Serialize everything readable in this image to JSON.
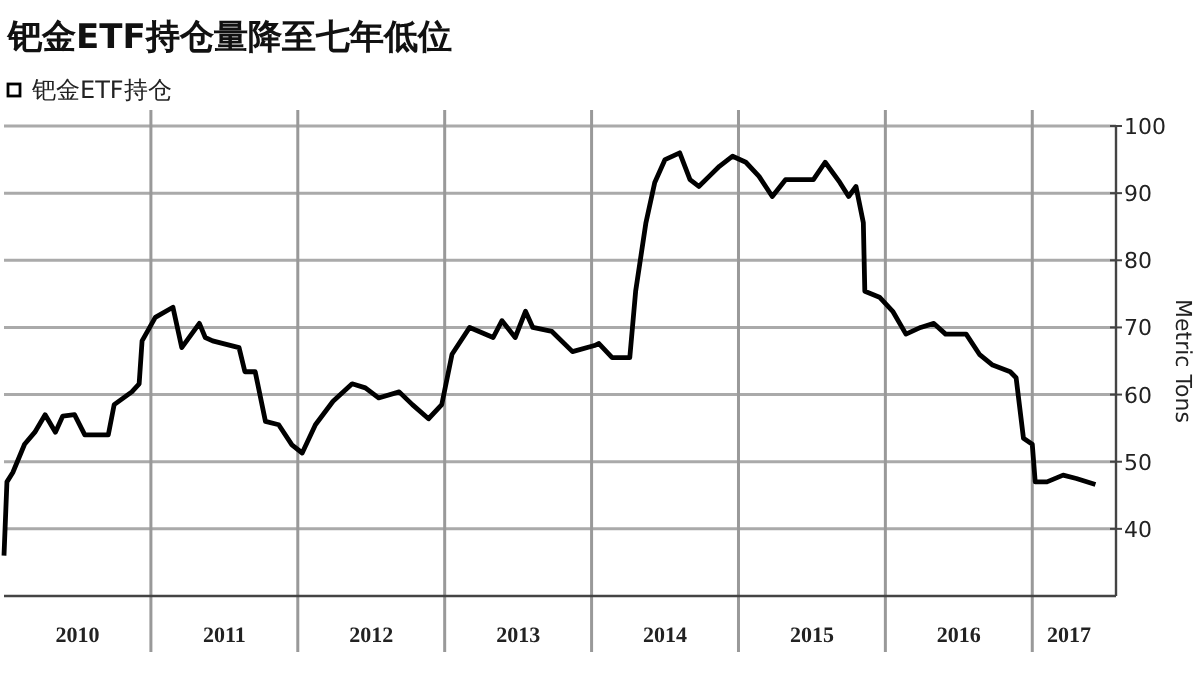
{
  "chart_data": {
    "type": "line",
    "title": "钯金ETF持仓量降至七年低位",
    "ylabel": "Metric Tons",
    "legend": "top left",
    "grid": true,
    "xlim": [
      2010,
      2017.57
    ],
    "xticks": [
      {
        "value": 2010.5,
        "label": "2010"
      },
      {
        "value": 2011,
        "label": null
      },
      {
        "value": 2011.5,
        "label": "2011"
      },
      {
        "value": 2012,
        "label": null
      },
      {
        "value": 2012.5,
        "label": "2012"
      },
      {
        "value": 2013,
        "label": null
      },
      {
        "value": 2013.5,
        "label": "2013"
      },
      {
        "value": 2014,
        "label": null
      },
      {
        "value": 2014.5,
        "label": "2014"
      },
      {
        "value": 2015,
        "label": null
      },
      {
        "value": 2015.5,
        "label": "2015"
      },
      {
        "value": 2016,
        "label": null
      },
      {
        "value": 2016.5,
        "label": "2016"
      },
      {
        "value": 2017,
        "label": null
      },
      {
        "value": 2017.25,
        "label": "2017"
      }
    ],
    "ylim": [
      30,
      100
    ],
    "yticks": [
      40,
      50,
      60,
      70,
      80,
      90,
      100
    ],
    "series": [
      {
        "name": "钯金ETF持仓",
        "color": "#000000",
        "x": [
          2010.0,
          2010.02,
          2010.06,
          2010.14,
          2010.21,
          2010.28,
          2010.35,
          2010.4,
          2010.48,
          2010.55,
          2010.71,
          2010.75,
          2010.87,
          2010.92,
          2010.94,
          2011.03,
          2011.15,
          2011.21,
          2011.33,
          2011.37,
          2011.42,
          2011.6,
          2011.64,
          2011.71,
          2011.78,
          2011.87,
          2011.96,
          2012.03,
          2012.12,
          2012.24,
          2012.37,
          2012.46,
          2012.55,
          2012.69,
          2012.78,
          2012.89,
          2012.98,
          2013.05,
          2013.17,
          2013.33,
          2013.39,
          2013.48,
          2013.55,
          2013.6,
          2013.73,
          2013.87,
          2014.02,
          2014.05,
          2014.14,
          2014.26,
          2014.3,
          2014.37,
          2014.43,
          2014.5,
          2014.6,
          2014.67,
          2014.73,
          2014.8,
          2014.87,
          2014.96,
          2015.05,
          2015.14,
          2015.23,
          2015.32,
          2015.51,
          2015.59,
          2015.69,
          2015.75,
          2015.8,
          2015.85,
          2015.86,
          2015.96,
          2016.05,
          2016.14,
          2016.24,
          2016.33,
          2016.41,
          2016.55,
          2016.64,
          2016.73,
          2016.85,
          2016.89,
          2016.94,
          2017.0,
          2017.02,
          2017.1,
          2017.21,
          2017.3,
          2017.43
        ],
        "values": [
          36,
          47,
          48.4,
          52.6,
          54.4,
          57,
          54.4,
          56.8,
          57,
          54,
          54,
          58.5,
          60.4,
          61.6,
          68,
          71.5,
          73,
          67,
          70.6,
          68.5,
          68,
          67,
          63.4,
          63.4,
          56,
          55.5,
          52.5,
          51.3,
          55.5,
          59,
          61.6,
          61,
          59.5,
          60.4,
          58.5,
          56.4,
          58.5,
          66,
          70,
          68.5,
          71,
          68.5,
          72.4,
          70,
          69.4,
          66.4,
          67.3,
          67.6,
          65.5,
          65.5,
          75.4,
          85.6,
          91.6,
          95,
          96,
          92,
          91,
          92.5,
          94,
          95.5,
          94.6,
          92.5,
          89.5,
          92,
          92,
          94.6,
          91.6,
          89.5,
          91,
          85.6,
          75.4,
          74.5,
          72.4,
          69,
          70,
          70.6,
          69,
          69,
          66,
          64.4,
          63.4,
          62.5,
          53.5,
          52.6,
          47,
          47,
          48,
          47.5,
          46.6
        ]
      }
    ]
  }
}
